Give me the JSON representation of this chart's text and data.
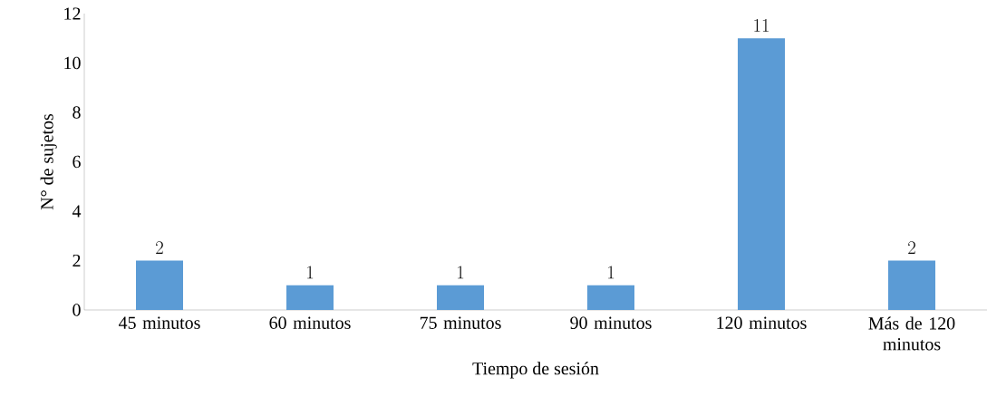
{
  "chart_data": {
    "type": "bar",
    "xlabel": "Tiempo de sesión",
    "ylabel": "N° de sujetos",
    "categories": [
      "45 minutos",
      "60 minutos",
      "75 minutos",
      "90 minutos",
      "120 minutos",
      "Más de 120 minutos"
    ],
    "values": [
      2,
      1,
      1,
      1,
      11,
      2
    ],
    "color": "#5b9bd5",
    "ylim": [
      0,
      12
    ],
    "yticks": [
      0,
      2,
      4,
      6,
      8,
      10,
      12
    ],
    "data_labels": true,
    "grid": false
  }
}
